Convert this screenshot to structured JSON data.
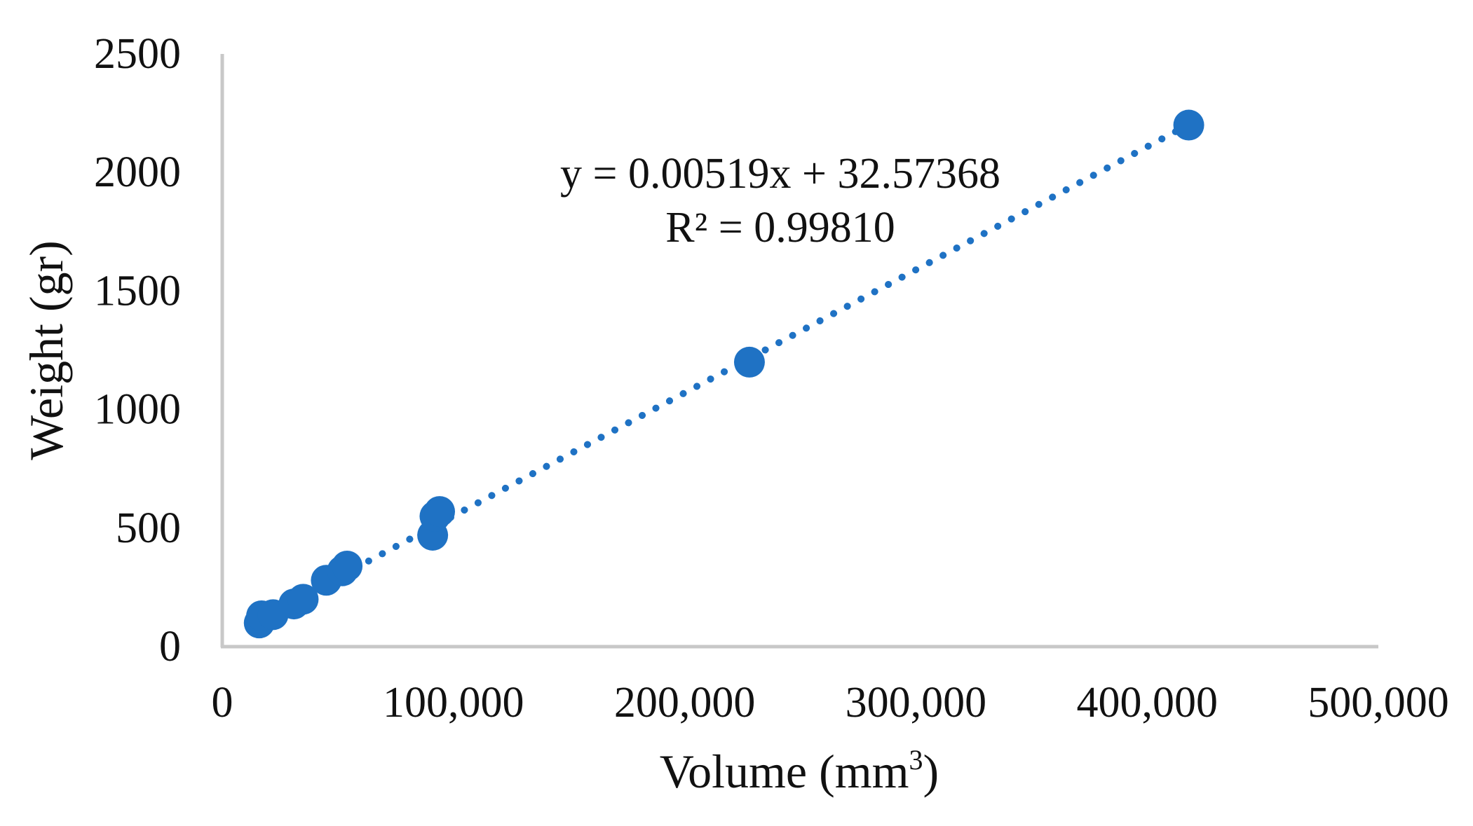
{
  "chart_data": {
    "type": "scatter",
    "title": "",
    "xlabel": "Volume (mm",
    "xlabel_superscript": "3",
    "xlabel_suffix": ")",
    "ylabel": "Weight  (gr)",
    "xlim": [
      0,
      500000
    ],
    "ylim": [
      0,
      2500
    ],
    "xticks": [
      0,
      100000,
      200000,
      300000,
      400000,
      500000
    ],
    "xtick_labels": [
      "0",
      "100,000",
      "200,000",
      "300,000",
      "400,000",
      "500,000"
    ],
    "yticks": [
      0,
      500,
      1000,
      1500,
      2000,
      2500
    ],
    "ytick_labels": [
      "0",
      "500",
      "1000",
      "1500",
      "2000",
      "2500"
    ],
    "grid": false,
    "legend": false,
    "marker_color": "#1f72c4",
    "axis_color": "#c8c8c8",
    "series": [
      {
        "points": [
          {
            "x": 16000,
            "y": 100
          },
          {
            "x": 17000,
            "y": 130
          },
          {
            "x": 22000,
            "y": 135
          },
          {
            "x": 31000,
            "y": 180
          },
          {
            "x": 35000,
            "y": 200
          },
          {
            "x": 45000,
            "y": 280
          },
          {
            "x": 52000,
            "y": 320
          },
          {
            "x": 54000,
            "y": 340
          },
          {
            "x": 91000,
            "y": 470
          },
          {
            "x": 92000,
            "y": 550
          },
          {
            "x": 94000,
            "y": 570
          },
          {
            "x": 228000,
            "y": 1200
          },
          {
            "x": 418000,
            "y": 2200
          }
        ]
      }
    ],
    "trendline": {
      "type": "linear",
      "slope": 0.00519,
      "intercept": 32.57368,
      "style": "dotted",
      "equation_text": "y = 0.00519x + 32.57368",
      "r2_text": "R² = 0.99810"
    }
  }
}
